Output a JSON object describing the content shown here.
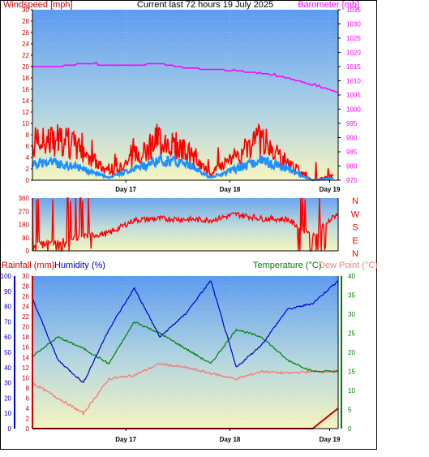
{
  "header": {
    "left_title": "Windspeed [mph]",
    "center_title": "Current last 72 hours 19 July 2025",
    "right_title": "Barometer [mb]"
  },
  "lower_header": {
    "rainfall_label": "Rainfall (mm)",
    "humidity_label": "Humidity (%)",
    "temperature_label": "Temperature (°C)",
    "dewpoint_label": "Dew Point (°C)"
  },
  "x_axis": {
    "day_labels": [
      "Day 17",
      "Day 18",
      "Day 19"
    ]
  },
  "direction_labels": [
    "N",
    "W",
    "S",
    "E",
    "N"
  ],
  "colors": {
    "wind": "#ff0000",
    "wind_avg": "#1e90ff",
    "barometer": "#ff00ff",
    "direction": "#ff0000",
    "rain": "#cc0000",
    "humidity": "#0000cc",
    "temperature": "#008000",
    "dewpoint": "#f08080",
    "left_axis": "#cc0000",
    "right_axis_top": "#ff00ff",
    "right_axis_bottom": "#008000",
    "humidity_axis": "#0000cc"
  },
  "chart_data": [
    {
      "type": "line",
      "panel": "wind_and_barometer",
      "x_unit": "hours (last 72 h)",
      "x": [
        0,
        6,
        12,
        18,
        24,
        30,
        36,
        42,
        48,
        54,
        60,
        66,
        72
      ],
      "series": [
        {
          "values_note": "gust",
          "values": [
            6,
            7,
            5,
            1,
            4,
            7,
            5,
            1,
            4,
            7,
            3,
            0,
            1
          ]
        },
        {
          "values_note": "average",
          "values": [
            3,
            3,
            2,
            0.5,
            2,
            3.5,
            3,
            0.5,
            2,
            3.5,
            2,
            0,
            0.5
          ]
        },
        {
          "values_note": "barometer",
          "values": [
            1015,
            1015,
            1016,
            1015.5,
            1015.5,
            1016,
            1014.5,
            1014,
            1013.5,
            1012.5,
            1011,
            1008.5,
            1006
          ]
        }
      ],
      "ylim_left": [
        0,
        30
      ],
      "ylim_right": [
        975,
        1035
      ],
      "yticks_left": [
        "0",
        "2",
        "4",
        "6",
        "8",
        "10",
        "12",
        "14",
        "16",
        "18",
        "20",
        "22",
        "24",
        "26",
        "28",
        "30"
      ],
      "yticks_right": [
        "975",
        "980",
        "985",
        "990",
        "995",
        "1000",
        "1005",
        "1010",
        "1015",
        "1020",
        "1025",
        "1030",
        "1035"
      ]
    },
    {
      "type": "line",
      "panel": "wind_direction",
      "x": [
        0,
        6,
        12,
        18,
        24,
        30,
        36,
        42,
        48,
        54,
        60,
        66,
        72
      ],
      "values": [
        40,
        60,
        100,
        120,
        210,
        220,
        215,
        210,
        250,
        220,
        215,
        100,
        260
      ],
      "ylim": [
        0,
        360
      ],
      "yticks": [
        "0",
        "90",
        "180",
        "270",
        "360"
      ]
    },
    {
      "type": "line",
      "panel": "rain_humidity_temperature",
      "x": [
        0,
        6,
        12,
        18,
        24,
        30,
        36,
        42,
        48,
        54,
        60,
        66,
        72
      ],
      "series": [
        {
          "values_note": "rainfall",
          "values": [
            0,
            0,
            0,
            0,
            0,
            0,
            0,
            0,
            0,
            0,
            0,
            0,
            4
          ]
        },
        {
          "values_note": "humidity",
          "values": [
            85,
            45,
            30,
            65,
            92,
            60,
            75,
            97,
            40,
            55,
            78,
            82,
            97
          ]
        },
        {
          "values_note": "temperature",
          "values": [
            19,
            24,
            21,
            17,
            28,
            25,
            21,
            17,
            26,
            24,
            18,
            15,
            15
          ]
        },
        {
          "values_note": "dewpoint",
          "values": [
            12,
            8,
            4,
            13,
            14,
            17,
            16,
            14.5,
            13,
            15,
            14.5,
            15,
            15
          ]
        }
      ],
      "ylim_rain": [
        0,
        30
      ],
      "ylim_humidity": [
        0,
        100
      ],
      "ylim_temperature": [
        0,
        40
      ],
      "yticks_rain": [
        "0",
        "2",
        "4",
        "6",
        "8",
        "10",
        "12",
        "14",
        "16",
        "18",
        "20",
        "22",
        "24",
        "26",
        "28",
        "30"
      ],
      "yticks_humidity": [
        "0",
        "10",
        "20",
        "30",
        "40",
        "50",
        "60",
        "70",
        "80",
        "90",
        "100"
      ],
      "yticks_temperature": [
        "0",
        "5",
        "10",
        "15",
        "20",
        "25",
        "30",
        "35",
        "40"
      ]
    }
  ]
}
